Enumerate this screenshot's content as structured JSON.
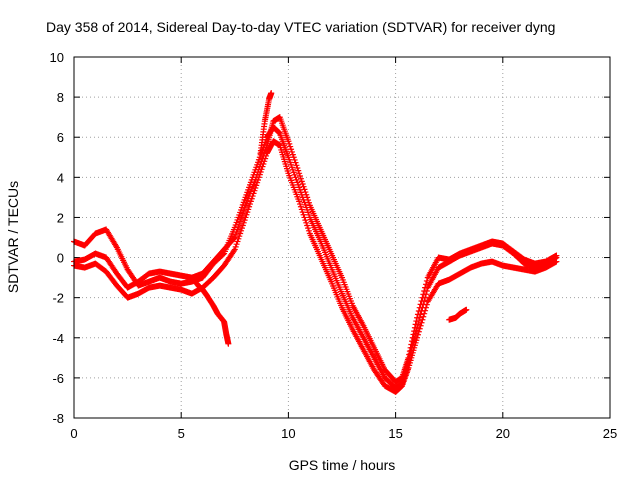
{
  "chart_data": {
    "type": "scatter",
    "title": "Day 358 of 2014, Sidereal Day-to-day VTEC variation (SDTVAR) for receiver dyng",
    "xlabel": "GPS time / hours",
    "ylabel": "SDTVAR / TECUs",
    "xlim": [
      0,
      25
    ],
    "ylim": [
      -8,
      10
    ],
    "xticks": [
      0,
      5,
      10,
      15,
      20,
      25
    ],
    "yticks": [
      -8,
      -6,
      -4,
      -2,
      0,
      2,
      4,
      6,
      8,
      10
    ],
    "xtick_labels": [
      "0",
      "5",
      "10",
      "15",
      "20",
      "25"
    ],
    "ytick_labels": [
      "-8",
      "-6",
      "-4",
      "-2",
      "0",
      "2",
      "4",
      "6",
      "8",
      "10"
    ],
    "grid": true,
    "marker": "+",
    "series_color": "#ff0000",
    "series": [
      {
        "name": "track-a",
        "x": [
          0,
          0.5,
          1,
          1.5,
          2,
          2.5,
          3,
          3.5,
          4,
          4.5,
          5,
          5.5,
          6,
          6.5,
          7,
          7.5,
          8,
          8.5,
          9,
          9.3,
          9.6,
          10,
          10.5,
          11,
          11.5,
          12,
          12.5,
          13,
          13.5,
          14,
          14.5,
          15,
          15.3,
          15.6,
          16,
          16.5,
          17,
          17.5,
          18,
          18.5,
          19,
          19.5,
          20,
          20.5,
          21,
          21.5,
          22,
          22.5
        ],
        "y": [
          0.8,
          0.6,
          1.2,
          1.4,
          0.5,
          -0.6,
          -1.4,
          -1.2,
          -1.0,
          -1.2,
          -1.3,
          -1.2,
          -1.0,
          -0.3,
          0.2,
          1.5,
          3.0,
          4.5,
          6.0,
          6.5,
          6.2,
          5.0,
          3.5,
          2.0,
          0.8,
          -0.5,
          -1.8,
          -3.0,
          -4.0,
          -5.0,
          -6.0,
          -6.5,
          -6.3,
          -5.2,
          -3.5,
          -1.5,
          -0.5,
          -0.2,
          0.1,
          0.3,
          0.5,
          0.7,
          0.6,
          0.2,
          -0.3,
          -0.5,
          -0.4,
          0.0
        ]
      },
      {
        "name": "track-b",
        "x": [
          0,
          0.5,
          1,
          1.5,
          2,
          2.5,
          3,
          3.5,
          4,
          4.5,
          5,
          5.5,
          6,
          6.5,
          7,
          7.5,
          8,
          8.5,
          9,
          9.3,
          9.6,
          10,
          10.5,
          11,
          11.5,
          12,
          12.5,
          13,
          13.5,
          14,
          14.5,
          15,
          15.3,
          15.6,
          16,
          16.5,
          17,
          17.5,
          18,
          18.5,
          19,
          19.5,
          20,
          20.5,
          21,
          21.5,
          22,
          22.5
        ],
        "y": [
          -0.4,
          -0.5,
          -0.3,
          -0.7,
          -1.4,
          -2.0,
          -1.8,
          -1.5,
          -1.4,
          -1.5,
          -1.6,
          -1.8,
          -1.5,
          -1.0,
          -0.4,
          0.4,
          2.0,
          3.6,
          5.2,
          5.8,
          5.6,
          4.2,
          2.8,
          1.2,
          0.0,
          -1.2,
          -2.5,
          -3.6,
          -4.6,
          -5.6,
          -6.4,
          -6.7,
          -6.4,
          -5.5,
          -4.0,
          -2.2,
          -1.3,
          -1.1,
          -0.8,
          -0.5,
          -0.3,
          -0.2,
          -0.4,
          -0.5,
          -0.6,
          -0.7,
          -0.5,
          -0.2
        ]
      },
      {
        "name": "track-c",
        "x": [
          0,
          0.5,
          1,
          1.5,
          2,
          2.5,
          3,
          3.5,
          4,
          4.5,
          5,
          5.5,
          6,
          6.5,
          7,
          7.5,
          8,
          8.5,
          9,
          9.3,
          9.6,
          10,
          10.5,
          11,
          11.5,
          12,
          12.5,
          13,
          13.5,
          14,
          14.5,
          15,
          15.3,
          15.6,
          16,
          16.5,
          17,
          17.5,
          18,
          18.5,
          19,
          19.5,
          20,
          20.5,
          21,
          21.5,
          22,
          22.5
        ],
        "y": [
          -0.2,
          -0.1,
          0.2,
          0.0,
          -0.8,
          -1.5,
          -1.2,
          -0.8,
          -0.7,
          -0.8,
          -0.9,
          -1.0,
          -0.8,
          -0.2,
          0.4,
          1.0,
          2.6,
          4.0,
          5.6,
          6.8,
          7.0,
          5.8,
          4.2,
          2.6,
          1.4,
          0.2,
          -1.0,
          -2.4,
          -3.4,
          -4.5,
          -5.6,
          -6.2,
          -6.0,
          -5.0,
          -3.0,
          -1.0,
          0.0,
          -0.1,
          0.2,
          0.4,
          0.6,
          0.8,
          0.7,
          0.3,
          -0.1,
          -0.3,
          -0.2,
          0.1
        ]
      },
      {
        "name": "excursion-early",
        "x": [
          5.5,
          5.8,
          6.0,
          6.2,
          6.5,
          6.7,
          7.0,
          7.1,
          7.2
        ],
        "y": [
          -1.0,
          -1.4,
          -1.6,
          -1.9,
          -2.4,
          -2.8,
          -3.2,
          -3.8,
          -4.3
        ]
      },
      {
        "name": "excursion-late",
        "x": [
          17.5,
          17.8,
          18.0,
          18.3
        ],
        "y": [
          -3.1,
          -3.0,
          -2.8,
          -2.6
        ]
      },
      {
        "name": "spike-near-9h",
        "x": [
          8.7,
          8.9,
          9.1,
          9.2
        ],
        "y": [
          5.2,
          6.8,
          7.9,
          8.2
        ]
      }
    ]
  }
}
